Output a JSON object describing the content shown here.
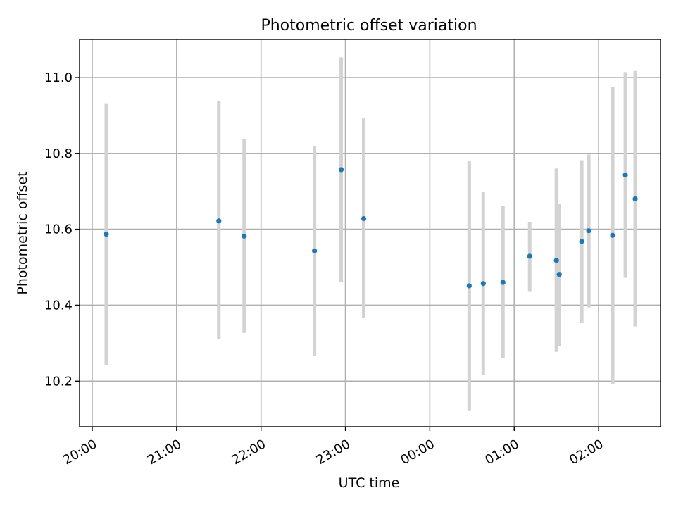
{
  "chart_data": {
    "type": "scatter",
    "title": "Photometric offset variation",
    "xlabel": "UTC time",
    "ylabel": "Photometric offset",
    "x_tick_labels": [
      "20:00",
      "21:00",
      "22:00",
      "23:00",
      "00:00",
      "01:00",
      "02:00"
    ],
    "y_tick_labels": [
      "10.2",
      "10.4",
      "10.6",
      "10.8",
      "11.0"
    ],
    "y_ticks": [
      10.2,
      10.4,
      10.6,
      10.8,
      11.0
    ],
    "ylim": [
      10.08,
      11.1
    ],
    "xlim": [
      "19:51",
      "02:44"
    ],
    "grid": true,
    "colors": {
      "point": "#1f77b4",
      "errorbar": "#d3d3d3",
      "grid": "#b0b0b0"
    },
    "points": [
      {
        "x": "20:10",
        "y": 10.587,
        "y_low": 10.242,
        "y_high": 10.932
      },
      {
        "x": "21:30",
        "y": 10.622,
        "y_low": 10.31,
        "y_high": 10.937
      },
      {
        "x": "21:48",
        "y": 10.582,
        "y_low": 10.327,
        "y_high": 10.838
      },
      {
        "x": "22:38",
        "y": 10.543,
        "y_low": 10.267,
        "y_high": 10.818
      },
      {
        "x": "22:57",
        "y": 10.757,
        "y_low": 10.462,
        "y_high": 11.053
      },
      {
        "x": "23:13",
        "y": 10.628,
        "y_low": 10.366,
        "y_high": 10.892
      },
      {
        "x": "00:28",
        "y": 10.451,
        "y_low": 10.123,
        "y_high": 10.779
      },
      {
        "x": "00:38",
        "y": 10.457,
        "y_low": 10.216,
        "y_high": 10.699
      },
      {
        "x": "00:52",
        "y": 10.46,
        "y_low": 10.261,
        "y_high": 10.661
      },
      {
        "x": "01:11",
        "y": 10.529,
        "y_low": 10.437,
        "y_high": 10.62
      },
      {
        "x": "01:30",
        "y": 10.518,
        "y_low": 10.277,
        "y_high": 10.76
      },
      {
        "x": "01:32",
        "y": 10.481,
        "y_low": 10.293,
        "y_high": 10.668
      },
      {
        "x": "01:48",
        "y": 10.568,
        "y_low": 10.354,
        "y_high": 10.782
      },
      {
        "x": "01:53",
        "y": 10.596,
        "y_low": 10.394,
        "y_high": 10.797
      },
      {
        "x": "02:10",
        "y": 10.584,
        "y_low": 10.193,
        "y_high": 10.974
      },
      {
        "x": "02:19",
        "y": 10.743,
        "y_low": 10.472,
        "y_high": 11.014
      },
      {
        "x": "02:26",
        "y": 10.68,
        "y_low": 10.344,
        "y_high": 11.017
      }
    ]
  }
}
